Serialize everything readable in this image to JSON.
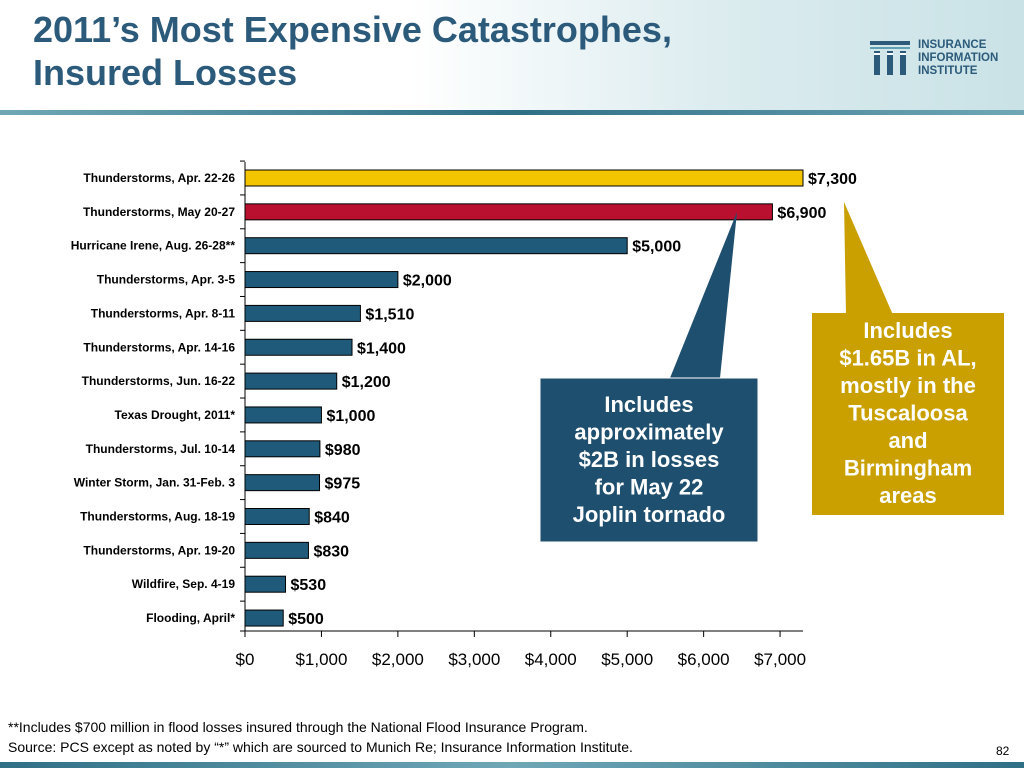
{
  "title": {
    "line1": "2011’s Most Expensive Catastrophes,",
    "line2": "Insured Losses"
  },
  "logo": {
    "icon": "iii-logo-icon",
    "line1": "INSURANCE",
    "line2": "INFORMATION",
    "line3": "INSTITUTE"
  },
  "chart_data": {
    "type": "bar",
    "orientation": "horizontal",
    "categories": [
      "Thunderstorms, Apr. 22-26",
      "Thunderstorms, May 20-27",
      "Hurricane Irene, Aug. 26-28**",
      "Thunderstorms, Apr. 3-5",
      "Thunderstorms, Apr. 8-11",
      "Thunderstorms, Apr. 14-16",
      "Thunderstorms, Jun. 16-22",
      "Texas Drought, 2011*",
      "Thunderstorms, Jul. 10-14",
      "Winter Storm, Jan. 31-Feb. 3",
      "Thunderstorms, Aug. 18-19",
      "Thunderstorms, Apr. 19-20",
      "Wildfire, Sep. 4-19",
      "Flooding, April*"
    ],
    "values": [
      7300,
      6900,
      5000,
      2000,
      1510,
      1400,
      1200,
      1000,
      980,
      975,
      840,
      830,
      530,
      500
    ],
    "data_labels": [
      "$7,300",
      "$6,900",
      "$5,000",
      "$2,000",
      "$1,510",
      "$1,400",
      "$1,200",
      "$1,000",
      "$980",
      "$975",
      "$840",
      "$830",
      "$530",
      "$500"
    ],
    "bar_colors": [
      "#f2c500",
      "#b8102e",
      "#1f5a7a",
      "#1f5a7a",
      "#1f5a7a",
      "#1f5a7a",
      "#1f5a7a",
      "#1f5a7a",
      "#1f5a7a",
      "#1f5a7a",
      "#1f5a7a",
      "#1f5a7a",
      "#1f5a7a",
      "#1f5a7a"
    ],
    "xlim": [
      0,
      7300
    ],
    "x_ticks": [
      0,
      1000,
      2000,
      3000,
      4000,
      5000,
      6000,
      7000
    ],
    "x_tick_labels": [
      "$0",
      "$1,000",
      "$2,000",
      "$3,000",
      "$4,000",
      "$5,000",
      "$6,000",
      "$7,000"
    ],
    "grid": false,
    "xlabel": "",
    "ylabel": ""
  },
  "callouts": [
    {
      "lines": [
        "Includes",
        "approximately",
        "$2B in losses",
        "for  May 22",
        "Joplin tornado"
      ],
      "color": "#1f4f6e",
      "points_to": "Thunderstorms, May 20-27"
    },
    {
      "lines": [
        "Includes",
        "$1.65B in AL,",
        "mostly in the",
        "Tuscaloosa",
        "and",
        "Birmingham",
        "areas"
      ],
      "color": "#c9a000",
      "points_to": "Thunderstorms, Apr. 22-26"
    }
  ],
  "footnote": {
    "line1": "**Includes $700 million  in flood losses insured through the National Flood Insurance Program.",
    "line2": "Source:  PCS except  as noted by “*” which are sourced to Munich Re; Insurance Information Institute."
  },
  "page_number": "82"
}
